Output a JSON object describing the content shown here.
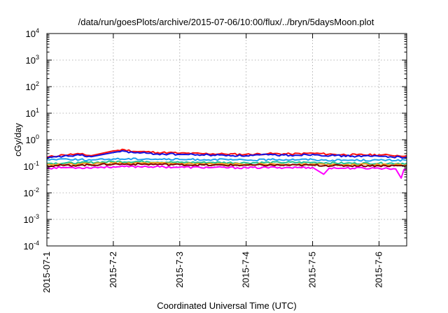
{
  "chart_data": {
    "type": "line",
    "title": "/data/run/goesPlots/archive/2015-07-06/10:00/flux/../bryn/5daysMoon.plot",
    "xlabel": "Coordinated Universal Time (UTC)",
    "ylabel": "cGy/day",
    "xscale": "time",
    "yscale": "log",
    "xlim": [
      "2015-07-01T00:00",
      "2015-07-06T10:00"
    ],
    "ylim": [
      0.0001,
      10000
    ],
    "grid": true,
    "legend": "none",
    "x_ticks": [
      {
        "value": "2015-07-01",
        "label": "2015-07-1"
      },
      {
        "value": "2015-07-02",
        "label": "2015-7-2"
      },
      {
        "value": "2015-07-03",
        "label": "2015-7-3"
      },
      {
        "value": "2015-07-04",
        "label": "2015-7-4"
      },
      {
        "value": "2015-07-05",
        "label": "2015-7-5"
      },
      {
        "value": "2015-07-06",
        "label": "2015-7-6"
      }
    ],
    "y_ticks": [
      {
        "value": 0.0001,
        "base": "10",
        "exp": "-4"
      },
      {
        "value": 0.001,
        "base": "10",
        "exp": "-3"
      },
      {
        "value": 0.01,
        "base": "10",
        "exp": "-2"
      },
      {
        "value": 0.1,
        "base": "10",
        "exp": "-1"
      },
      {
        "value": 1,
        "base": "10",
        "exp": "0"
      },
      {
        "value": 10,
        "base": "10",
        "exp": "1"
      },
      {
        "value": 100,
        "base": "10",
        "exp": "2"
      },
      {
        "value": 1000,
        "base": "10",
        "exp": "3"
      },
      {
        "value": 10000,
        "base": "10",
        "exp": "4"
      }
    ],
    "series": [
      {
        "color": "#ff1010",
        "points": [
          [
            "2015-07-01T00:00",
            0.22
          ],
          [
            "2015-07-01T06:00",
            0.27
          ],
          [
            "2015-07-01T12:00",
            0.29
          ],
          [
            "2015-07-01T16:00",
            0.25
          ],
          [
            "2015-07-02T00:00",
            0.38
          ],
          [
            "2015-07-02T04:00",
            0.42
          ],
          [
            "2015-07-02T08:00",
            0.36
          ],
          [
            "2015-07-02T12:00",
            0.35
          ],
          [
            "2015-07-02T16:00",
            0.33
          ],
          [
            "2015-07-02T20:00",
            0.33
          ],
          [
            "2015-07-03T00:00",
            0.31
          ],
          [
            "2015-07-03T08:00",
            0.3
          ],
          [
            "2015-07-03T16:00",
            0.29
          ],
          [
            "2015-07-04T00:00",
            0.28
          ],
          [
            "2015-07-04T08:00",
            0.3
          ],
          [
            "2015-07-04T16:00",
            0.29
          ],
          [
            "2015-07-05T00:00",
            0.31
          ],
          [
            "2015-07-05T08:00",
            0.28
          ],
          [
            "2015-07-05T16:00",
            0.27
          ],
          [
            "2015-07-06T00:00",
            0.27
          ],
          [
            "2015-07-06T04:00",
            0.26
          ],
          [
            "2015-07-06T10:00",
            0.25
          ]
        ]
      },
      {
        "color": "#1010e0",
        "points": [
          [
            "2015-07-01T00:00",
            0.2
          ],
          [
            "2015-07-01T06:00",
            0.24
          ],
          [
            "2015-07-01T12:00",
            0.26
          ],
          [
            "2015-07-01T16:00",
            0.23
          ],
          [
            "2015-07-02T00:00",
            0.33
          ],
          [
            "2015-07-02T04:00",
            0.37
          ],
          [
            "2015-07-02T08:00",
            0.32
          ],
          [
            "2015-07-02T12:00",
            0.31
          ],
          [
            "2015-07-02T16:00",
            0.29
          ],
          [
            "2015-07-02T20:00",
            0.29
          ],
          [
            "2015-07-03T00:00",
            0.28
          ],
          [
            "2015-07-03T08:00",
            0.27
          ],
          [
            "2015-07-03T16:00",
            0.26
          ],
          [
            "2015-07-04T00:00",
            0.25
          ],
          [
            "2015-07-04T08:00",
            0.27
          ],
          [
            "2015-07-04T16:00",
            0.26
          ],
          [
            "2015-07-05T00:00",
            0.28
          ],
          [
            "2015-07-05T08:00",
            0.25
          ],
          [
            "2015-07-05T16:00",
            0.24
          ],
          [
            "2015-07-06T00:00",
            0.24
          ],
          [
            "2015-07-06T04:00",
            0.23
          ],
          [
            "2015-07-06T10:00",
            0.22
          ]
        ]
      },
      {
        "color": "#20a0f0",
        "points": [
          [
            "2015-07-01T00:00",
            0.18
          ],
          [
            "2015-07-01T06:00",
            0.19
          ],
          [
            "2015-07-01T12:00",
            0.18
          ],
          [
            "2015-07-01T16:00",
            0.17
          ],
          [
            "2015-07-02T00:00",
            0.19
          ],
          [
            "2015-07-02T12:00",
            0.19
          ],
          [
            "2015-07-03T00:00",
            0.18
          ],
          [
            "2015-07-03T12:00",
            0.18
          ],
          [
            "2015-07-04T00:00",
            0.17
          ],
          [
            "2015-07-04T12:00",
            0.18
          ],
          [
            "2015-07-05T00:00",
            0.18
          ],
          [
            "2015-07-05T04:00",
            0.17
          ],
          [
            "2015-07-05T12:00",
            0.17
          ],
          [
            "2015-07-06T00:00",
            0.17
          ],
          [
            "2015-07-06T10:00",
            0.17
          ]
        ]
      },
      {
        "color": "#20c090",
        "points": [
          [
            "2015-07-01T00:00",
            0.13
          ],
          [
            "2015-07-01T12:00",
            0.135
          ],
          [
            "2015-07-02T00:00",
            0.15
          ],
          [
            "2015-07-02T12:00",
            0.15
          ],
          [
            "2015-07-03T00:00",
            0.14
          ],
          [
            "2015-07-03T12:00",
            0.14
          ],
          [
            "2015-07-04T00:00",
            0.135
          ],
          [
            "2015-07-04T12:00",
            0.14
          ],
          [
            "2015-07-05T00:00",
            0.14
          ],
          [
            "2015-07-05T12:00",
            0.13
          ],
          [
            "2015-07-06T00:00",
            0.13
          ],
          [
            "2015-07-06T10:00",
            0.13
          ]
        ]
      },
      {
        "color": "#f0a020",
        "points": [
          [
            "2015-07-01T00:00",
            0.115
          ],
          [
            "2015-07-01T12:00",
            0.12
          ],
          [
            "2015-07-02T00:00",
            0.13
          ],
          [
            "2015-07-02T12:00",
            0.13
          ],
          [
            "2015-07-03T00:00",
            0.125
          ],
          [
            "2015-07-03T12:00",
            0.12
          ],
          [
            "2015-07-04T00:00",
            0.12
          ],
          [
            "2015-07-04T12:00",
            0.12
          ],
          [
            "2015-07-05T00:00",
            0.12
          ],
          [
            "2015-07-05T12:00",
            0.115
          ],
          [
            "2015-07-06T00:00",
            0.115
          ],
          [
            "2015-07-06T10:00",
            0.115
          ]
        ]
      },
      {
        "color": "#800000",
        "points": [
          [
            "2015-07-01T00:00",
            0.105
          ],
          [
            "2015-07-01T12:00",
            0.11
          ],
          [
            "2015-07-02T00:00",
            0.12
          ],
          [
            "2015-07-02T12:00",
            0.12
          ],
          [
            "2015-07-03T00:00",
            0.115
          ],
          [
            "2015-07-03T12:00",
            0.11
          ],
          [
            "2015-07-04T00:00",
            0.11
          ],
          [
            "2015-07-04T12:00",
            0.11
          ],
          [
            "2015-07-05T00:00",
            0.11
          ],
          [
            "2015-07-05T12:00",
            0.105
          ],
          [
            "2015-07-06T00:00",
            0.105
          ],
          [
            "2015-07-06T10:00",
            0.105
          ]
        ]
      },
      {
        "color": "#ff00ff",
        "points": [
          [
            "2015-07-01T00:00",
            0.085
          ],
          [
            "2015-07-01T06:00",
            0.09
          ],
          [
            "2015-07-01T12:00",
            0.088
          ],
          [
            "2015-07-02T00:00",
            0.095
          ],
          [
            "2015-07-02T12:00",
            0.098
          ],
          [
            "2015-07-03T00:00",
            0.092
          ],
          [
            "2015-07-03T12:00",
            0.09
          ],
          [
            "2015-07-04T00:00",
            0.088
          ],
          [
            "2015-07-04T12:00",
            0.09
          ],
          [
            "2015-07-05T00:00",
            0.09
          ],
          [
            "2015-07-05T04:00",
            0.05
          ],
          [
            "2015-07-05T06:00",
            0.085
          ],
          [
            "2015-07-05T12:00",
            0.085
          ],
          [
            "2015-07-06T00:00",
            0.085
          ],
          [
            "2015-07-06T06:00",
            0.08
          ],
          [
            "2015-07-06T08:00",
            0.036
          ],
          [
            "2015-07-06T09:00",
            0.075
          ],
          [
            "2015-07-06T10:00",
            0.08
          ]
        ]
      }
    ]
  }
}
